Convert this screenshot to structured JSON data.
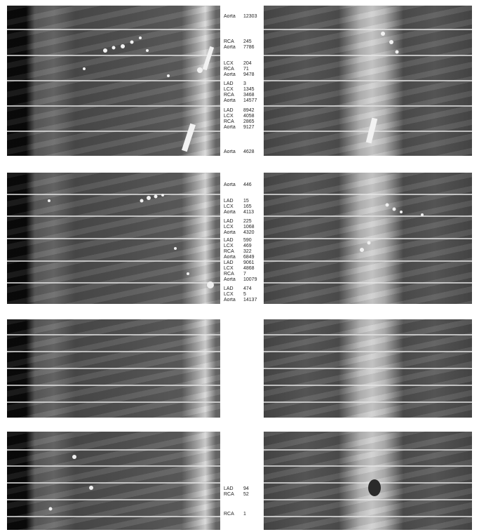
{
  "rows": [
    {
      "image_alt": "CT scan slices with horizontal reference lines",
      "labels": [
        {
          "name": "Aorta",
          "value": "12303"
        },
        {
          "name": "RCA",
          "value": "245"
        },
        {
          "name": "Aorta",
          "value": "7786"
        },
        {
          "name": "LCX",
          "value": "204"
        },
        {
          "name": "RCA",
          "value": "71"
        },
        {
          "name": "Aorta",
          "value": "9478"
        },
        {
          "name": "LAD",
          "value": "3"
        },
        {
          "name": "LCX",
          "value": "1345"
        },
        {
          "name": "RCA",
          "value": "3468"
        },
        {
          "name": "Aorta",
          "value": "14577"
        },
        {
          "name": "LAD",
          "value": "8942"
        },
        {
          "name": "LCX",
          "value": "4058"
        },
        {
          "name": "RCA",
          "value": "2865"
        },
        {
          "name": "Aorta",
          "value": "9127"
        },
        {
          "name": "Aorta",
          "value": "4628"
        }
      ]
    },
    {
      "labels": [
        {
          "name": "Aorta",
          "value": "446"
        },
        {
          "name": "LAD",
          "value": "15"
        },
        {
          "name": "LCX",
          "value": "165"
        },
        {
          "name": "Aorta",
          "value": "4113"
        },
        {
          "name": "LAD",
          "value": "225"
        },
        {
          "name": "LCX",
          "value": "1068"
        },
        {
          "name": "Aorta",
          "value": "4320"
        },
        {
          "name": "LAD",
          "value": "590"
        },
        {
          "name": "LCX",
          "value": "469"
        },
        {
          "name": "RCA",
          "value": "322"
        },
        {
          "name": "Aorta",
          "value": "6849"
        },
        {
          "name": "LAD",
          "value": "9061"
        },
        {
          "name": "LCX",
          "value": "4868"
        },
        {
          "name": "RCA",
          "value": "7"
        },
        {
          "name": "Aorta",
          "value": "10079"
        },
        {
          "name": "LAD",
          "value": "474"
        },
        {
          "name": "LCX",
          "value": "5"
        },
        {
          "name": "Aorta",
          "value": "14137"
        }
      ]
    },
    {
      "labels": []
    },
    {
      "labels": [
        {
          "name": "LAD",
          "value": "94"
        },
        {
          "name": "RCA",
          "value": "52"
        },
        {
          "name": "RCA",
          "value": "1"
        }
      ]
    }
  ]
}
